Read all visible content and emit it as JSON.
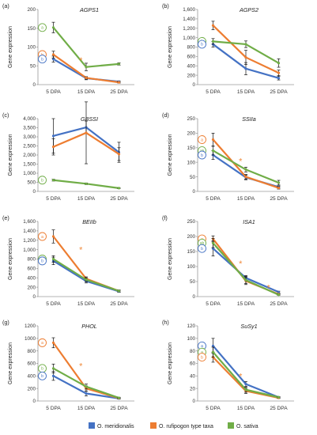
{
  "colors": {
    "O. meridionalis": "#4472c4",
    "O. rufipogon type taxa": "#ed7d31",
    "O. sativa": "#70ad47",
    "star": "#f08a3c"
  },
  "legend": [
    "O. meridionalis",
    "O. rufipogon type taxa",
    "O. sativa"
  ],
  "chart_data": [
    {
      "type": "line",
      "panel": "(a)",
      "title": "AGPS1",
      "ylabel": "Gene expression",
      "categories": [
        "5 DPA",
        "15 DPA",
        "25 DPA"
      ],
      "ylim": [
        0,
        200
      ],
      "yticks": [
        "0",
        "50",
        "100",
        "150",
        "200"
      ],
      "series": [
        {
          "name": "O. meridionalis",
          "values": [
            68,
            17,
            8
          ],
          "err": [
            8,
            4,
            2
          ]
        },
        {
          "name": "O. rufipogon type taxa",
          "values": [
            80,
            18,
            6
          ],
          "err": [
            9,
            3,
            2
          ]
        },
        {
          "name": "O. sativa",
          "values": [
            152,
            47,
            55
          ],
          "err": [
            14,
            10,
            3
          ]
        }
      ],
      "markers": [
        {
          "series": "O. sativa",
          "label": "a"
        },
        {
          "series": "O. rufipogon type taxa",
          "label": "b"
        },
        {
          "series": "O. meridionalis",
          "label": "b"
        }
      ],
      "stars": [
        {
          "x": "15 DPA",
          "y": 65
        }
      ]
    },
    {
      "type": "line",
      "panel": "(b)",
      "title": "AGPS2",
      "ylabel": "Gene expression",
      "categories": [
        "5 DPA",
        "15 DPA",
        "25 DPA"
      ],
      "ylim": [
        0,
        1600
      ],
      "yticks": [
        "0",
        "200",
        "400",
        "600",
        "800",
        "1,000",
        "1,200",
        "1,400",
        "1,600"
      ],
      "series": [
        {
          "name": "O. meridionalis",
          "values": [
            860,
            340,
            140
          ],
          "err": [
            60,
            130,
            40
          ]
        },
        {
          "name": "O. rufipogon type taxa",
          "values": [
            1260,
            580,
            250
          ],
          "err": [
            90,
            150,
            60
          ]
        },
        {
          "name": "O. sativa",
          "values": [
            920,
            860,
            460
          ],
          "err": [
            60,
            70,
            90
          ]
        }
      ],
      "markers": [
        {
          "series": "O. sativa",
          "label": "b"
        },
        {
          "series": "O. meridionalis",
          "label": "b"
        }
      ],
      "stars": []
    },
    {
      "type": "line",
      "panel": "(c)",
      "title": "GBSSI",
      "ylabel": "Gene expression",
      "categories": [
        "5 DPA",
        "15 DPA",
        "25 DPA"
      ],
      "ylim": [
        0,
        4000
      ],
      "yticks": [
        "0",
        "500",
        "1,000",
        "1,500",
        "2,000",
        "2,500",
        "3,000",
        "3,500",
        "4,000"
      ],
      "series": [
        {
          "name": "O. meridionalis",
          "values": [
            3050,
            3520,
            2150
          ],
          "err": [
            950,
            350,
            550
          ]
        },
        {
          "name": "O. rufipogon type taxa",
          "values": [
            2450,
            3220,
            2050
          ],
          "err": [
            450,
            1700,
            350
          ]
        },
        {
          "name": "O. sativa",
          "values": [
            620,
            420,
            180
          ],
          "err": [
            50,
            40,
            20
          ]
        }
      ],
      "markers": [
        {
          "series": "O. sativa",
          "label": "b"
        }
      ],
      "stars": []
    },
    {
      "type": "line",
      "panel": "(d)",
      "title": "SSIIa",
      "ylabel": "Gene expression",
      "categories": [
        "5 DPA",
        "15 DPA",
        "25 DPA"
      ],
      "ylim": [
        0,
        250
      ],
      "yticks": [
        "0",
        "50",
        "100",
        "150",
        "200",
        "250"
      ],
      "series": [
        {
          "name": "O. meridionalis",
          "values": [
            125,
            48,
            15
          ],
          "err": [
            15,
            8,
            4
          ]
        },
        {
          "name": "O. rufipogon type taxa",
          "values": [
            178,
            50,
            12
          ],
          "err": [
            22,
            8,
            4
          ]
        },
        {
          "name": "O. sativa",
          "values": [
            140,
            75,
            30
          ],
          "err": [
            15,
            8,
            8
          ]
        }
      ],
      "markers": [
        {
          "series": "O. rufipogon type taxa",
          "label": "a"
        },
        {
          "series": "O. sativa",
          "label": "ab"
        },
        {
          "series": "O. meridionalis",
          "label": "b"
        }
      ],
      "stars": [
        {
          "x": "15 DPA",
          "y": 105
        }
      ]
    },
    {
      "type": "line",
      "panel": "(e)",
      "title": "BEIIb",
      "ylabel": "Gene expression",
      "categories": [
        "5 DPA",
        "15 DPA",
        "25 DPA"
      ],
      "ylim": [
        0,
        1600
      ],
      "yticks": [
        "0",
        "200",
        "400",
        "600",
        "800",
        "1,000",
        "1,200",
        "1,400",
        "1,600"
      ],
      "series": [
        {
          "name": "O. meridionalis",
          "values": [
            760,
            330,
            110
          ],
          "err": [
            80,
            40,
            20
          ]
        },
        {
          "name": "O. rufipogon type taxa",
          "values": [
            1280,
            380,
            120
          ],
          "err": [
            140,
            40,
            20
          ]
        },
        {
          "name": "O. sativa",
          "values": [
            800,
            360,
            120
          ],
          "err": [
            70,
            40,
            20
          ]
        }
      ],
      "markers": [
        {
          "series": "O. rufipogon type taxa",
          "label": "a"
        },
        {
          "series": "O. sativa",
          "label": "b"
        },
        {
          "series": "O. meridionalis",
          "label": "b"
        }
      ],
      "stars": [
        {
          "x": "15 DPA",
          "y": 1000
        }
      ]
    },
    {
      "type": "line",
      "panel": "(f)",
      "title": "ISA1",
      "ylabel": "Gene expression",
      "categories": [
        "5 DPA",
        "15 DPA",
        "25 DPA"
      ],
      "ylim": [
        0,
        250
      ],
      "yticks": [
        "0",
        "50",
        "100",
        "150",
        "200",
        "250"
      ],
      "series": [
        {
          "name": "O. meridionalis",
          "values": [
            160,
            62,
            15
          ],
          "err": [
            25,
            8,
            3
          ]
        },
        {
          "name": "O. rufipogon type taxa",
          "values": [
            192,
            52,
            8
          ],
          "err": [
            10,
            12,
            2
          ]
        },
        {
          "name": "O. sativa",
          "values": [
            178,
            55,
            6
          ],
          "err": [
            15,
            12,
            2
          ]
        }
      ],
      "markers": [
        {
          "series": "O. rufipogon type taxa",
          "label": "a"
        },
        {
          "series": "O. sativa",
          "label": "ab"
        },
        {
          "series": "O. meridionalis",
          "label": "b"
        }
      ],
      "stars": [
        {
          "x": "15 DPA",
          "y": 110
        },
        {
          "x": "25 DPA",
          "y": 30
        }
      ]
    },
    {
      "type": "line",
      "panel": "(g)",
      "title": "PHOL",
      "ylabel": "Gene expression",
      "categories": [
        "5 DPA",
        "15 DPA",
        "25 DPA"
      ],
      "ylim": [
        0,
        1200
      ],
      "yticks": [
        "0",
        "200",
        "400",
        "600",
        "800",
        "1000",
        "1200"
      ],
      "series": [
        {
          "name": "O. meridionalis",
          "values": [
            400,
            120,
            40
          ],
          "err": [
            70,
            40,
            10
          ]
        },
        {
          "name": "O. rufipogon type taxa",
          "values": [
            930,
            200,
            45
          ],
          "err": [
            80,
            40,
            10
          ]
        },
        {
          "name": "O. sativa",
          "values": [
            520,
            230,
            50
          ],
          "err": [
            70,
            40,
            10
          ]
        }
      ],
      "markers": [
        {
          "series": "O. rufipogon type taxa",
          "label": "a"
        },
        {
          "series": "O. sativa",
          "label": "b"
        },
        {
          "series": "O. meridionalis",
          "label": "b"
        }
      ],
      "stars": [
        {
          "x": "15 DPA",
          "y": 560
        }
      ]
    },
    {
      "type": "line",
      "panel": "(h)",
      "title": "SuSy1",
      "ylabel": "Gene expression",
      "categories": [
        "5 DPA",
        "15 DPA",
        "25 DPA"
      ],
      "ylim": [
        0,
        120
      ],
      "yticks": [
        "0",
        "20",
        "40",
        "60",
        "80",
        "100",
        "120"
      ],
      "series": [
        {
          "name": "O. meridionalis",
          "values": [
            88,
            27,
            6
          ],
          "err": [
            12,
            4,
            1
          ]
        },
        {
          "name": "O. rufipogon type taxa",
          "values": [
            70,
            16,
            5
          ],
          "err": [
            8,
            4,
            1
          ]
        },
        {
          "name": "O. sativa",
          "values": [
            78,
            18,
            6
          ],
          "err": [
            8,
            4,
            1
          ]
        }
      ],
      "markers": [
        {
          "series": "O. meridionalis",
          "label": "a"
        },
        {
          "series": "O. sativa",
          "label": "a"
        },
        {
          "series": "O. rufipogon type taxa",
          "label": "b"
        }
      ],
      "stars": [
        {
          "x": "15 DPA",
          "y": 40
        }
      ]
    }
  ]
}
